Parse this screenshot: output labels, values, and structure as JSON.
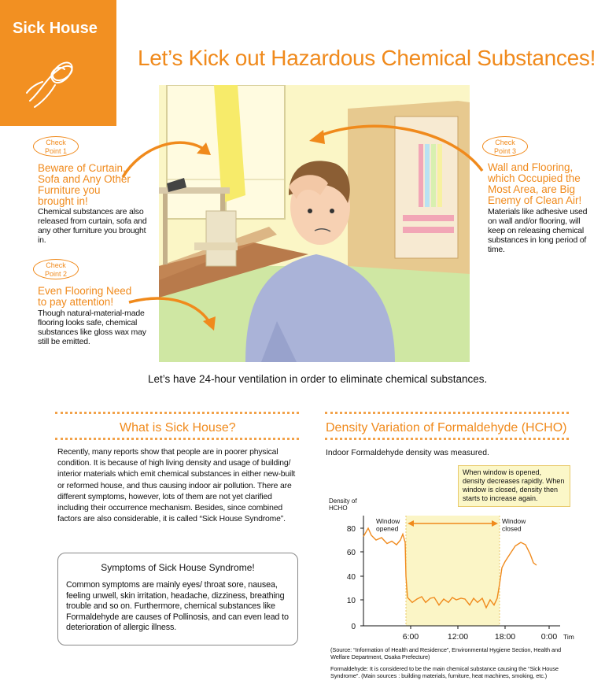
{
  "header": {
    "tab_title": "Sick House",
    "main_title": "Let’s Kick out Hazardous Chemical Substances!"
  },
  "check_points": [
    {
      "badge": "Check\nPoint 1",
      "heading": "Beware of Curtain,\nSofa and Any Other\nFurniture you\nbrought in!",
      "body": "Chemical substances are also\nreleased from curtain, sofa and\nany other furniture you brought\nin."
    },
    {
      "badge": "Check\nPoint 2",
      "heading": "Even Flooring Need\nto pay attention!",
      "body": "Though natural-material-made\nflooring looks safe, chemical\nsubstances like gloss wax may\nstill be emitted."
    },
    {
      "badge": "Check\nPoint 3",
      "heading": "Wall and Flooring,\nwhich Occupied the\nMost Area, are Big\nEnemy of Clean Air!",
      "body": "Materials like adhesive used\non wall and/or flooring, will\nkeep on releasing chemical\nsubstances in long period of\ntime."
    }
  ],
  "ventilation_caption": "Let’s have 24-hour ventilation in order to eliminate chemical substances.",
  "what_is": {
    "title": "What is Sick House?",
    "body": "Recently, many reports show that people are in poorer physical condition.  It is because of high living density and usage of building/ interior materials which emit chemical substances in either new-built or reformed house, and thus causing indoor air pollution.  There are different symptoms, however, lots of them are not yet clarified including their occurrence mechanism.  Besides, since combined factors are also considerable, it is called “Sick House Syndrome”."
  },
  "symptoms": {
    "title": "Symptoms of Sick House Syndrome!",
    "body": "Common symptoms are mainly eyes/ throat sore, nausea, feeling unwell, skin irritation, headache, dizziness, breathing trouble and so on.  Furthermore, chemical substances like Formaldehyde are causes of Pollinosis, and can even lead to deterioration of allergic illness."
  },
  "density": {
    "title": "Density Variation of Formaldehyde (HCHO)",
    "intro": "Indoor Formaldehyde density was measured.",
    "note": "When window is opened, density decreases rapidly.  When window is closed, density then starts to increase again.",
    "source": "(Source: “Information of Health and Residence”, Environmental Hygiene Section, Health and Welfare Department, Osaka Prefecture)",
    "footnote": "Formaldehyde:  It is considered to be the main chemical substance causing the “Sick House Syndrome”. (Main sources : building materials, furniture, heat machines, smoking, etc.)"
  },
  "chart_data": {
    "type": "line",
    "ylabel": "Density of\nHCHO",
    "xlabel": "Time",
    "y_ticks": [
      "80",
      "60",
      "40",
      "10",
      "0"
    ],
    "x_ticks": [
      "6:00",
      "12:00",
      "18:00",
      "0:00"
    ],
    "annotations": {
      "window_opened": "Window\nopened",
      "window_closed": "Window\nclosed"
    },
    "colors": {
      "line": "#f08a1c",
      "window_band": "#fbf5c6",
      "arrow": "#f08a1c"
    },
    "series": [
      {
        "values": [
          [
            0,
            73
          ],
          [
            0.6,
            80
          ],
          [
            1,
            74
          ],
          [
            1.6,
            70
          ],
          [
            2.3,
            72
          ],
          [
            3,
            67
          ],
          [
            3.6,
            69
          ],
          [
            4.2,
            66
          ],
          [
            4.7,
            70
          ],
          [
            5.0,
            75
          ],
          [
            5.3,
            68
          ],
          [
            5.4,
            40
          ],
          [
            5.6,
            13
          ],
          [
            6.2,
            9
          ],
          [
            6.8,
            11
          ],
          [
            7.4,
            14
          ],
          [
            7.9,
            9
          ],
          [
            8.5,
            12
          ],
          [
            9.0,
            13
          ],
          [
            9.6,
            8
          ],
          [
            10.2,
            11
          ],
          [
            10.8,
            9
          ],
          [
            11.3,
            13
          ],
          [
            11.8,
            10
          ],
          [
            12.4,
            12
          ],
          [
            12.9,
            11
          ],
          [
            13.5,
            8
          ],
          [
            14.0,
            12
          ],
          [
            14.5,
            9
          ],
          [
            15.1,
            12
          ],
          [
            15.6,
            7
          ],
          [
            16.1,
            10
          ],
          [
            16.6,
            8
          ],
          [
            17.0,
            12
          ],
          [
            17.3,
            30
          ],
          [
            17.6,
            47
          ],
          [
            18.0,
            52
          ],
          [
            18.6,
            58
          ],
          [
            19.3,
            65
          ],
          [
            20.0,
            68
          ],
          [
            20.6,
            66
          ],
          [
            21.2,
            58
          ],
          [
            21.6,
            51
          ],
          [
            22.0,
            49
          ]
        ]
      }
    ],
    "window_open_range": [
      5.4,
      17.3
    ]
  }
}
